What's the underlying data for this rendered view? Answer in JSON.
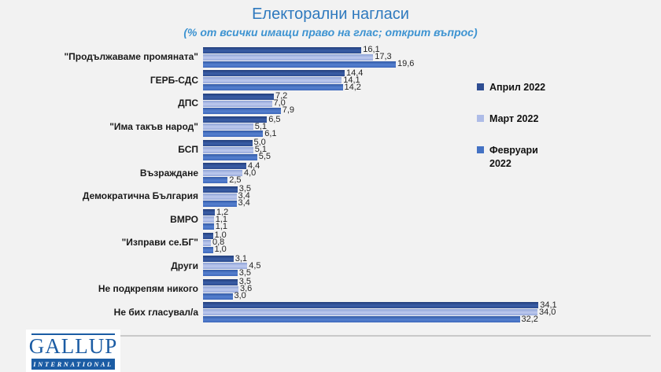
{
  "header": {
    "title": "Електорални нагласи",
    "subtitle": "(% от всички имащи право на глас; открит въпрос)"
  },
  "chart_data": {
    "type": "bar",
    "orientation": "horizontal",
    "title": "Електорални нагласи",
    "subtitle": "(% от всички имащи право на глас; открит въпрос)",
    "value_format": "comma_decimal",
    "xlim": [
      0,
      35
    ],
    "grid": false,
    "legend_position": "right",
    "categories": [
      "\"Продължаваме промяната\"",
      "ГЕРБ-СДС",
      "ДПС",
      "\"Има такъв народ\"",
      "БСП",
      "Възраждане",
      "Демократична България",
      "ВМРО",
      "\"Изправи се.БГ\"",
      "Други",
      "Не подкрепям никого",
      "Не бих гласувал/а"
    ],
    "series": [
      {
        "name": "Април 2022",
        "legend_color": "#2e4d92",
        "gradient": [
          "#223e7b",
          "#3a5ea6",
          "#2c4c90"
        ],
        "values": [
          16.1,
          14.4,
          7.2,
          6.5,
          5.0,
          4.4,
          3.5,
          1.2,
          1.0,
          3.1,
          3.5,
          34.1
        ]
      },
      {
        "name": "Март 2022",
        "legend_color": "#aebce7",
        "gradient": [
          "#8fa3d6",
          "#bdc9ee",
          "#97aadc"
        ],
        "values": [
          17.3,
          14.1,
          7.0,
          5.1,
          5.1,
          4.0,
          3.4,
          1.1,
          0.8,
          4.5,
          3.6,
          34.0
        ]
      },
      {
        "name": "Февруари 2022",
        "legend_color": "#4472c4",
        "gradient": [
          "#335aa6",
          "#5580cf",
          "#3e68bc"
        ],
        "values": [
          19.6,
          14.2,
          7.9,
          6.1,
          5.5,
          2.5,
          3.4,
          1.1,
          1.0,
          3.5,
          3.0,
          32.2
        ]
      }
    ]
  },
  "footer": {
    "logo_top": "GALLUP",
    "logo_bottom": "INTERNATIONAL"
  },
  "colors": {
    "title": "#2e79be",
    "subtitle": "#3d93d1",
    "logo_blue": "#1b5ca4",
    "background": "#f2f2f2",
    "divider": "#c9c9c9"
  }
}
